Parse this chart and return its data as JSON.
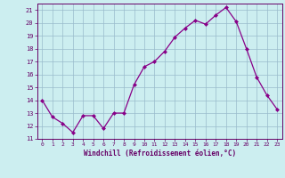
{
  "x": [
    0,
    1,
    2,
    3,
    4,
    5,
    6,
    7,
    8,
    9,
    10,
    11,
    12,
    13,
    14,
    15,
    16,
    17,
    18,
    19,
    20,
    21,
    22,
    23
  ],
  "y": [
    14,
    12.7,
    12.2,
    11.5,
    12.8,
    12.8,
    11.8,
    13.0,
    13.0,
    15.2,
    16.6,
    17.0,
    17.8,
    18.9,
    19.6,
    20.2,
    19.9,
    20.6,
    21.2,
    20.1,
    18.0,
    15.8,
    14.4,
    13.3
  ],
  "line_color": "#880088",
  "marker": "D",
  "marker_size": 2.0,
  "bg_color": "#cceef0",
  "grid_color": "#99bbcc",
  "xlabel": "Windchill (Refroidissement éolien,°C)",
  "ylim": [
    11,
    21.5
  ],
  "xlim": [
    -0.5,
    23.5
  ],
  "yticks": [
    11,
    12,
    13,
    14,
    15,
    16,
    17,
    18,
    19,
    20,
    21
  ],
  "xticks": [
    0,
    1,
    2,
    3,
    4,
    5,
    6,
    7,
    8,
    9,
    10,
    11,
    12,
    13,
    14,
    15,
    16,
    17,
    18,
    19,
    20,
    21,
    22,
    23
  ],
  "tick_color": "#660066",
  "label_color": "#660066"
}
